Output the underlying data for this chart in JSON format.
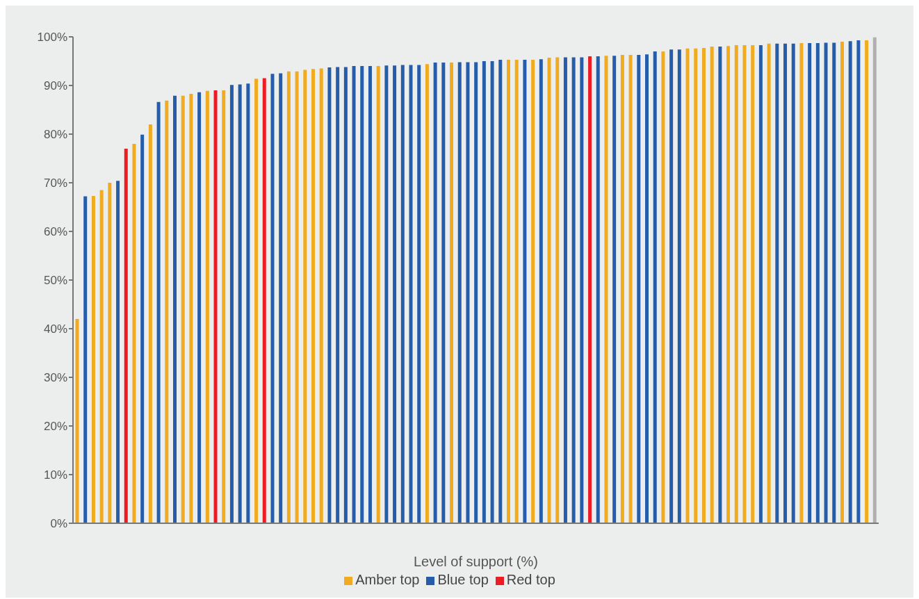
{
  "chart_data": {
    "type": "bar",
    "xlabel": "Level of support (%)",
    "categories": [
      null,
      null,
      null,
      null,
      null,
      null,
      null,
      null,
      null,
      null,
      null,
      null,
      null,
      null,
      null,
      null,
      null,
      null,
      null,
      null,
      null,
      null,
      null,
      null,
      null,
      null,
      null,
      null,
      null,
      null,
      null,
      null,
      null,
      null,
      null,
      null,
      null,
      null,
      null,
      null,
      null,
      null,
      null,
      null,
      null,
      null,
      null,
      null,
      null,
      null,
      null,
      null,
      null,
      null,
      null,
      null,
      null,
      null,
      null,
      null,
      null,
      null,
      null,
      null,
      null,
      null,
      null,
      null,
      null,
      null,
      null,
      null,
      null,
      null,
      null,
      null,
      null,
      null,
      null,
      null,
      null,
      null,
      null,
      null,
      null,
      null,
      null,
      null,
      null,
      null,
      null,
      null,
      null,
      null,
      null,
      null,
      null,
      null,
      null
    ],
    "stacked": true,
    "series": [
      {
        "name": "Red top",
        "color": "#ed1c24",
        "values": [
          null,
          null,
          null,
          null,
          null,
          null,
          77.0,
          null,
          null,
          null,
          null,
          null,
          null,
          null,
          null,
          null,
          null,
          89.0,
          null,
          null,
          null,
          null,
          null,
          91.5,
          null,
          null,
          null,
          null,
          null,
          null,
          null,
          null,
          null,
          null,
          null,
          null,
          null,
          null,
          null,
          null,
          null,
          null,
          null,
          null,
          null,
          null,
          null,
          null,
          null,
          null,
          null,
          null,
          null,
          null,
          null,
          null,
          null,
          null,
          null,
          null,
          null,
          null,
          null,
          96.0,
          null,
          null,
          null,
          null,
          null,
          null,
          null,
          null,
          null,
          null,
          null,
          null,
          null,
          null,
          null,
          null,
          null,
          null,
          null,
          null,
          null,
          null,
          null,
          null,
          null,
          null,
          null,
          null,
          null,
          null,
          null,
          null,
          null,
          null,
          null
        ]
      },
      {
        "name": "Amber top",
        "color": "#f0ab20",
        "values": [
          42.0,
          null,
          67.3,
          68.5,
          70.0,
          null,
          null,
          78.0,
          null,
          82.0,
          null,
          86.9,
          null,
          87.9,
          88.3,
          null,
          88.9,
          null,
          89.0,
          null,
          null,
          null,
          91.4,
          null,
          null,
          null,
          92.9,
          92.9,
          93.2,
          93.4,
          93.5,
          null,
          null,
          null,
          null,
          null,
          null,
          94.0,
          null,
          null,
          null,
          null,
          null,
          94.4,
          null,
          null,
          94.7,
          null,
          null,
          null,
          null,
          null,
          null,
          95.3,
          95.3,
          null,
          95.3,
          null,
          95.7,
          95.8,
          null,
          null,
          null,
          null,
          null,
          96.1,
          null,
          96.3,
          96.3,
          null,
          null,
          null,
          97.0,
          null,
          null,
          97.6,
          97.6,
          97.7,
          98.0,
          null,
          98.1,
          98.3,
          98.3,
          98.3,
          null,
          98.6,
          null,
          null,
          null,
          98.7,
          null,
          null,
          null,
          null,
          99.0,
          null,
          null,
          99.3,
          null
        ]
      },
      {
        "name": "Blue top",
        "color": "#265dab",
        "values": [
          null,
          67.2,
          null,
          null,
          null,
          70.4,
          null,
          null,
          79.9,
          null,
          86.6,
          null,
          87.9,
          null,
          null,
          88.6,
          null,
          null,
          null,
          90.1,
          90.2,
          90.4,
          null,
          null,
          92.4,
          92.5,
          null,
          null,
          null,
          null,
          null,
          93.7,
          93.8,
          93.8,
          94.0,
          94.0,
          94.0,
          null,
          94.1,
          94.1,
          94.2,
          94.2,
          94.2,
          null,
          94.7,
          94.7,
          null,
          94.8,
          94.8,
          94.8,
          95.0,
          95.0,
          95.3,
          null,
          null,
          95.3,
          null,
          95.4,
          null,
          null,
          95.8,
          95.8,
          95.8,
          null,
          96.0,
          null,
          96.1,
          null,
          null,
          96.3,
          96.4,
          97.0,
          null,
          97.4,
          97.4,
          null,
          null,
          null,
          null,
          98.0,
          null,
          null,
          null,
          null,
          98.3,
          null,
          98.6,
          98.6,
          98.6,
          null,
          98.7,
          98.7,
          98.8,
          98.8,
          null,
          99.1,
          99.3,
          null,
          null
        ]
      },
      {
        "color": "#b0b0b0",
        "values": [
          null,
          null,
          null,
          null,
          null,
          null,
          null,
          null,
          null,
          null,
          null,
          null,
          null,
          null,
          null,
          null,
          null,
          null,
          null,
          null,
          null,
          null,
          null,
          null,
          null,
          null,
          null,
          null,
          null,
          null,
          null,
          null,
          null,
          null,
          null,
          null,
          null,
          null,
          null,
          null,
          null,
          null,
          null,
          null,
          null,
          null,
          null,
          null,
          null,
          null,
          null,
          null,
          null,
          null,
          null,
          null,
          null,
          null,
          null,
          null,
          null,
          null,
          null,
          null,
          null,
          null,
          null,
          null,
          null,
          null,
          null,
          null,
          null,
          null,
          null,
          null,
          null,
          null,
          null,
          null,
          null,
          null,
          null,
          null,
          null,
          null,
          null,
          null,
          null,
          null,
          null,
          null,
          null,
          null,
          null,
          null,
          null,
          null,
          99.9
        ]
      }
    ],
    "ylim": [
      0,
      100
    ],
    "yticks": [
      {
        "value": 0,
        "label": "0%"
      },
      {
        "value": 10,
        "label": "10%"
      },
      {
        "value": 20,
        "label": "20%"
      },
      {
        "value": 30,
        "label": "30%"
      },
      {
        "value": 40,
        "label": "40%"
      },
      {
        "value": 50,
        "label": "50%"
      },
      {
        "value": 60,
        "label": "60%"
      },
      {
        "value": 70,
        "label": "70%"
      },
      {
        "value": 80,
        "label": "80%"
      },
      {
        "value": 90,
        "label": "90%"
      },
      {
        "value": 100,
        "label": "100%"
      }
    ],
    "grid": false,
    "legend": "bottom"
  }
}
